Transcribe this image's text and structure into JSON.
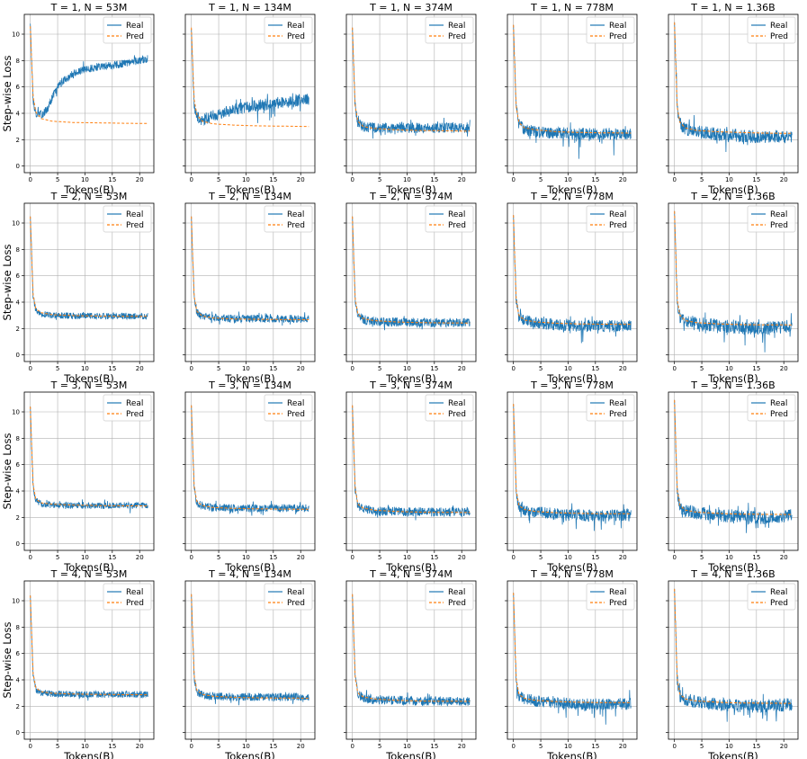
{
  "chart_data": {
    "type": "line",
    "rows": 4,
    "cols": 5,
    "xlabel": "Tokens(B)",
    "ylabel": "Step-wise Loss",
    "xlim": [
      -1.1,
      22.6
    ],
    "ylim": [
      -0.5,
      11.5
    ],
    "xticks": [
      0,
      5,
      10,
      15,
      20
    ],
    "yticks": [
      0,
      2,
      4,
      6,
      8,
      10
    ],
    "grid": true,
    "legend_position": "top-right",
    "series_names": [
      "Real",
      "Pred"
    ],
    "series_colors": {
      "Real": "#1f77b4",
      "Pred": "#ff7f0e"
    },
    "line_styles": {
      "Real": "solid",
      "Pred": "dashed"
    },
    "x_max": 21.5,
    "model_sizes": [
      "53M",
      "134M",
      "374M",
      "778M",
      "1.36B"
    ],
    "T_values": [
      1,
      2,
      3,
      4
    ],
    "panels": [
      {
        "title": "T = 1, N = 53M",
        "pred_x": [
          0.0,
          0.5,
          1,
          2,
          4,
          8,
          12,
          16,
          21.5
        ],
        "pred_y": [
          10.6,
          5.3,
          4.1,
          3.6,
          3.4,
          3.3,
          3.28,
          3.25,
          3.23
        ],
        "real_x": [
          0,
          0.5,
          1,
          2,
          3,
          4,
          5,
          6,
          8,
          10,
          12,
          14,
          16,
          18,
          20,
          21.5
        ],
        "real_y": [
          10.8,
          5.0,
          4.0,
          3.9,
          4.2,
          5.2,
          6.0,
          6.5,
          7.0,
          7.3,
          7.5,
          7.6,
          7.7,
          7.8,
          8.0,
          8.1
        ],
        "noise": 0.3
      },
      {
        "title": "T = 1, N = 134M",
        "pred_x": [
          0.0,
          0.5,
          1,
          2,
          4,
          8,
          12,
          16,
          21.5
        ],
        "pred_y": [
          10.5,
          5.1,
          3.9,
          3.4,
          3.2,
          3.1,
          3.05,
          3.03,
          3.0
        ],
        "real_x": [
          0,
          0.5,
          1,
          2,
          4,
          6,
          8,
          10,
          12,
          14,
          16,
          18,
          20,
          21.5
        ],
        "real_y": [
          10.4,
          4.7,
          3.7,
          3.5,
          3.8,
          4.1,
          4.3,
          4.5,
          4.6,
          4.7,
          4.8,
          4.9,
          5.0,
          5.1
        ],
        "noise": 0.45
      },
      {
        "title": "T = 1, N = 374M",
        "pred_x": [
          0.0,
          0.5,
          1,
          2,
          4,
          8,
          12,
          16,
          21.5
        ],
        "pred_y": [
          10.5,
          4.6,
          3.4,
          3.0,
          2.85,
          2.75,
          2.7,
          2.68,
          2.65
        ],
        "real_x": [
          0,
          0.5,
          1,
          2,
          4,
          8,
          12,
          16,
          21.5
        ],
        "real_y": [
          10.5,
          4.5,
          3.3,
          3.0,
          2.9,
          2.9,
          2.9,
          2.9,
          2.9
        ],
        "noise": 0.4
      },
      {
        "title": "T = 1, N = 778M",
        "pred_x": [
          0.0,
          0.5,
          1,
          2,
          4,
          8,
          12,
          16,
          21.5
        ],
        "pred_y": [
          10.7,
          4.5,
          3.3,
          2.9,
          2.75,
          2.6,
          2.55,
          2.52,
          2.5
        ],
        "real_x": [
          0,
          0.5,
          1,
          2,
          4,
          8,
          12,
          16,
          21.5
        ],
        "real_y": [
          10.7,
          4.4,
          3.2,
          2.8,
          2.6,
          2.5,
          2.45,
          2.45,
          2.45
        ],
        "noise": 0.45
      },
      {
        "title": "T = 1, N = 1.36B",
        "pred_x": [
          0.0,
          0.5,
          1,
          2,
          4,
          8,
          12,
          16,
          21.5
        ],
        "pred_y": [
          10.9,
          4.5,
          3.3,
          2.9,
          2.7,
          2.6,
          2.55,
          2.5,
          2.48
        ],
        "real_x": [
          0,
          0.5,
          1,
          2,
          4,
          8,
          12,
          16,
          21.5
        ],
        "real_y": [
          10.9,
          4.4,
          3.2,
          2.8,
          2.6,
          2.4,
          2.3,
          2.2,
          2.3
        ],
        "noise": 0.5
      },
      {
        "title": "T = 2, N = 53M",
        "pred_x": [
          0.0,
          0.5,
          1,
          2,
          4,
          8,
          12,
          16,
          21.5
        ],
        "pred_y": [
          10.5,
          4.6,
          3.5,
          3.2,
          3.05,
          2.98,
          2.95,
          2.93,
          2.92
        ],
        "real_x": [
          0,
          0.5,
          1,
          2,
          4,
          8,
          12,
          16,
          21.5
        ],
        "real_y": [
          10.5,
          4.5,
          3.4,
          3.1,
          3.0,
          2.95,
          2.95,
          2.95,
          2.95
        ],
        "noise": 0.25
      },
      {
        "title": "T = 2, N = 134M",
        "pred_x": [
          0.0,
          0.5,
          1,
          2,
          4,
          8,
          12,
          16,
          21.5
        ],
        "pred_y": [
          10.5,
          4.5,
          3.3,
          2.95,
          2.8,
          2.72,
          2.7,
          2.68,
          2.67
        ],
        "real_x": [
          0,
          0.5,
          1,
          2,
          4,
          8,
          12,
          16,
          21.5
        ],
        "real_y": [
          10.5,
          4.4,
          3.2,
          2.9,
          2.8,
          2.75,
          2.75,
          2.75,
          2.75
        ],
        "noise": 0.3
      },
      {
        "title": "T = 2, N = 374M",
        "pred_x": [
          0.0,
          0.5,
          1,
          2,
          4,
          8,
          12,
          16,
          21.5
        ],
        "pred_y": [
          10.5,
          4.3,
          3.1,
          2.75,
          2.6,
          2.5,
          2.45,
          2.43,
          2.42
        ],
        "real_x": [
          0,
          0.5,
          1,
          2,
          4,
          8,
          12,
          16,
          21.5
        ],
        "real_y": [
          10.5,
          4.2,
          3.0,
          2.7,
          2.55,
          2.5,
          2.45,
          2.45,
          2.45
        ],
        "noise": 0.35
      },
      {
        "title": "T = 2, N = 778M",
        "pred_x": [
          0.0,
          0.5,
          1,
          2,
          4,
          8,
          12,
          16,
          21.5
        ],
        "pred_y": [
          10.6,
          4.2,
          3.0,
          2.65,
          2.5,
          2.4,
          2.35,
          2.33,
          2.32
        ],
        "real_x": [
          0,
          0.5,
          1,
          2,
          4,
          8,
          12,
          16,
          21.5
        ],
        "real_y": [
          10.6,
          4.1,
          2.9,
          2.6,
          2.45,
          2.3,
          2.2,
          2.2,
          2.25
        ],
        "noise": 0.45
      },
      {
        "title": "T = 2, N = 1.36B",
        "pred_x": [
          0.0,
          0.5,
          1,
          2,
          4,
          8,
          12,
          16,
          21.5
        ],
        "pred_y": [
          10.9,
          4.2,
          3.0,
          2.6,
          2.45,
          2.35,
          2.3,
          2.28,
          2.27
        ],
        "real_x": [
          0,
          0.5,
          1,
          2,
          4,
          8,
          12,
          16,
          21.5
        ],
        "real_y": [
          10.9,
          4.1,
          2.9,
          2.55,
          2.4,
          2.2,
          2.1,
          2.0,
          2.2
        ],
        "noise": 0.5
      },
      {
        "title": "T = 3, N = 53M",
        "pred_x": [
          0.0,
          0.5,
          1,
          2,
          4,
          8,
          12,
          16,
          21.5
        ],
        "pred_y": [
          10.4,
          4.5,
          3.4,
          3.1,
          3.0,
          2.93,
          2.9,
          2.88,
          2.87
        ],
        "real_x": [
          0,
          0.5,
          1,
          2,
          4,
          8,
          12,
          16,
          21.5
        ],
        "real_y": [
          10.4,
          4.4,
          3.3,
          3.0,
          2.95,
          2.9,
          2.9,
          2.9,
          2.9
        ],
        "noise": 0.25
      },
      {
        "title": "T = 3, N = 134M",
        "pred_x": [
          0.0,
          0.5,
          1,
          2,
          4,
          8,
          12,
          16,
          21.5
        ],
        "pred_y": [
          10.5,
          4.4,
          3.2,
          2.9,
          2.75,
          2.68,
          2.65,
          2.63,
          2.62
        ],
        "real_x": [
          0,
          0.5,
          1,
          2,
          4,
          8,
          12,
          16,
          21.5
        ],
        "real_y": [
          10.5,
          4.3,
          3.1,
          2.85,
          2.75,
          2.7,
          2.7,
          2.7,
          2.7
        ],
        "noise": 0.3
      },
      {
        "title": "T = 3, N = 374M",
        "pred_x": [
          0.0,
          0.5,
          1,
          2,
          4,
          8,
          12,
          16,
          21.5
        ],
        "pred_y": [
          10.5,
          4.2,
          3.0,
          2.7,
          2.55,
          2.45,
          2.4,
          2.38,
          2.37
        ],
        "real_x": [
          0,
          0.5,
          1,
          2,
          4,
          8,
          12,
          16,
          21.5
        ],
        "real_y": [
          10.5,
          4.1,
          2.9,
          2.65,
          2.5,
          2.45,
          2.4,
          2.4,
          2.4
        ],
        "noise": 0.35
      },
      {
        "title": "T = 3, N = 778M",
        "pred_x": [
          0.0,
          0.5,
          1,
          2,
          4,
          8,
          12,
          16,
          21.5
        ],
        "pred_y": [
          10.6,
          4.1,
          2.9,
          2.6,
          2.45,
          2.35,
          2.3,
          2.28,
          2.27
        ],
        "real_x": [
          0,
          0.5,
          1,
          2,
          4,
          8,
          12,
          16,
          21.5
        ],
        "real_y": [
          10.6,
          4.0,
          2.8,
          2.55,
          2.4,
          2.25,
          2.15,
          2.15,
          2.2
        ],
        "noise": 0.45
      },
      {
        "title": "T = 3, N = 1.36B",
        "pred_x": [
          0.0,
          0.5,
          1,
          2,
          4,
          8,
          12,
          16,
          21.5
        ],
        "pred_y": [
          10.9,
          4.1,
          2.9,
          2.55,
          2.4,
          2.3,
          2.25,
          2.23,
          2.22
        ],
        "real_x": [
          0,
          0.5,
          1,
          2,
          4,
          8,
          12,
          16,
          21.5
        ],
        "real_y": [
          10.9,
          4.0,
          2.8,
          2.5,
          2.35,
          2.15,
          2.05,
          1.95,
          2.15
        ],
        "noise": 0.5
      },
      {
        "title": "T = 4, N = 53M",
        "pred_x": [
          0.0,
          0.5,
          1,
          2,
          4,
          8,
          12,
          16,
          21.5
        ],
        "pred_y": [
          10.4,
          4.5,
          3.4,
          3.1,
          2.98,
          2.92,
          2.9,
          2.88,
          2.87
        ],
        "real_x": [
          0,
          0.5,
          1,
          2,
          4,
          8,
          12,
          16,
          21.5
        ],
        "real_y": [
          10.4,
          4.4,
          3.3,
          3.0,
          2.95,
          2.9,
          2.9,
          2.9,
          2.9
        ],
        "noise": 0.25
      },
      {
        "title": "T = 4, N = 134M",
        "pred_x": [
          0.0,
          0.5,
          1,
          2,
          4,
          8,
          12,
          16,
          21.5
        ],
        "pred_y": [
          10.5,
          4.4,
          3.2,
          2.9,
          2.75,
          2.67,
          2.64,
          2.62,
          2.61
        ],
        "real_x": [
          0,
          0.5,
          1,
          2,
          4,
          8,
          12,
          16,
          21.5
        ],
        "real_y": [
          10.5,
          4.3,
          3.1,
          2.85,
          2.75,
          2.7,
          2.7,
          2.7,
          2.7
        ],
        "noise": 0.3
      },
      {
        "title": "T = 4, N = 374M",
        "pred_x": [
          0.0,
          0.5,
          1,
          2,
          4,
          8,
          12,
          16,
          21.5
        ],
        "pred_y": [
          10.5,
          4.2,
          3.0,
          2.7,
          2.55,
          2.45,
          2.4,
          2.38,
          2.37
        ],
        "real_x": [
          0,
          0.5,
          1,
          2,
          4,
          8,
          12,
          16,
          21.5
        ],
        "real_y": [
          10.5,
          4.1,
          2.9,
          2.65,
          2.5,
          2.45,
          2.4,
          2.4,
          2.4
        ],
        "noise": 0.35
      },
      {
        "title": "T = 4, N = 778M",
        "pred_x": [
          0.0,
          0.5,
          1,
          2,
          4,
          8,
          12,
          16,
          21.5
        ],
        "pred_y": [
          10.6,
          4.1,
          2.9,
          2.6,
          2.45,
          2.35,
          2.3,
          2.28,
          2.27
        ],
        "real_x": [
          0,
          0.5,
          1,
          2,
          4,
          8,
          12,
          16,
          21.5
        ],
        "real_y": [
          10.6,
          4.0,
          2.8,
          2.55,
          2.4,
          2.25,
          2.15,
          2.15,
          2.2
        ],
        "noise": 0.45
      },
      {
        "title": "T = 4, N = 1.36B",
        "pred_x": [
          0.0,
          0.5,
          1,
          2,
          4,
          8,
          12,
          16,
          21.5
        ],
        "pred_y": [
          10.9,
          4.1,
          2.9,
          2.55,
          2.4,
          2.3,
          2.25,
          2.23,
          2.22
        ],
        "real_x": [
          0,
          0.5,
          1,
          2,
          4,
          8,
          12,
          16,
          21.5
        ],
        "real_y": [
          10.9,
          4.0,
          2.8,
          2.5,
          2.35,
          2.15,
          2.05,
          1.95,
          2.15
        ],
        "noise": 0.5
      }
    ]
  }
}
